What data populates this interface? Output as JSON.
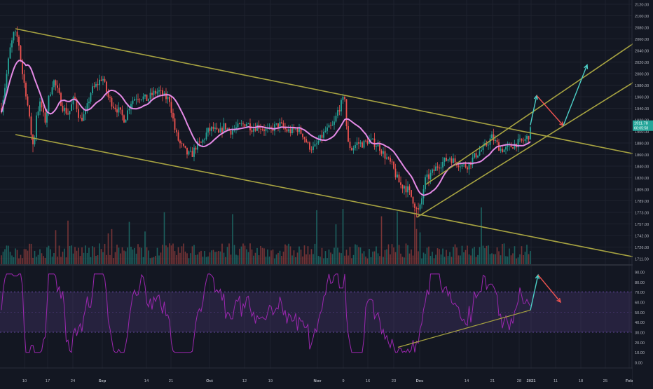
{
  "chart_data": [
    {
      "type": "candlestick",
      "panel": "price",
      "y_axis_ticks": [
        "2120.00",
        "2100.00",
        "2080.00",
        "2060.00",
        "2040.00",
        "2020.00",
        "2000.00",
        "1980.00",
        "1960.00",
        "1940.00",
        "1920.00",
        "1900.00",
        "1880.00",
        "1860.00",
        "1840.00",
        "1820.00",
        "1805.00",
        "1789.00",
        "1773.00",
        "1757.00",
        "1742.00",
        "1726.00",
        "1711.00"
      ],
      "price_badge": {
        "value": "1911.78",
        "subtext": "60:05:58",
        "color": "#26a69a"
      },
      "ylim": [
        1700,
        2125
      ],
      "x_axis_ticks": [
        "10",
        "17",
        "24",
        "Sep",
        "14",
        "21",
        "Oct",
        "12",
        "19",
        "Nov",
        "9",
        "16",
        "23",
        "Dec",
        "14",
        "21",
        "28",
        "2021",
        "11",
        "18",
        "25",
        "Feb"
      ],
      "candle_colors": {
        "up": "#26a69a",
        "down": "#ef5350"
      },
      "key_points": [
        {
          "label": "start",
          "close": 1940
        },
        {
          "label": "august-peak",
          "high": 2075
        },
        {
          "label": "august-low",
          "low": 1864
        },
        {
          "label": "late-sep-low",
          "low": 1848
        },
        {
          "label": "nov-spike",
          "high": 1965
        },
        {
          "label": "late-nov-low",
          "low": 1766
        },
        {
          "label": "latest",
          "close": 1911.78
        }
      ],
      "moving_average": {
        "color": "#e58ae6",
        "period_hint": "MA"
      },
      "trendlines": [
        {
          "name": "falling-channel-upper",
          "from": {
            "x": "Aug 6",
            "y": 2078
          },
          "to": {
            "x": "Feb 1",
            "y": 1866
          },
          "color": "#a7a341"
        },
        {
          "name": "falling-channel-lower",
          "from": {
            "x": "Aug 6",
            "y": 1900
          },
          "to": {
            "x": "Feb 1",
            "y": 1708
          },
          "color": "#a7a341"
        },
        {
          "name": "rising-channel-upper",
          "from": {
            "x": "Dec 3",
            "y": 1810
          },
          "to": {
            "x": "Feb 1",
            "y": 2065
          },
          "color": "#a7a341"
        },
        {
          "name": "rising-channel-lower",
          "from": {
            "x": "Nov 30",
            "y": 1773
          },
          "to": {
            "x": "Feb 1",
            "y": 2010
          },
          "color": "#a7a341"
        }
      ],
      "projection_arrows": [
        {
          "color": "#4dd0c8",
          "from": 1911,
          "to": 1962
        },
        {
          "color": "#ef5350",
          "from": 1962,
          "to": 1910
        },
        {
          "color": "#4dd0c8",
          "from": 1910,
          "to": 2015
        }
      ],
      "volume": {
        "up_color": "#26a69a",
        "down_color": "#ef5350"
      }
    },
    {
      "type": "line",
      "panel": "rsi",
      "y_axis_ticks": [
        "90.00",
        "80.00",
        "70.00",
        "60.00",
        "50.00",
        "40.00",
        "30.00",
        "20.00",
        "10.00",
        "0.00"
      ],
      "ylim": [
        -2,
        96
      ],
      "bands": {
        "upper": 70,
        "lower": 30,
        "fill": "#7e57c2"
      },
      "line_color": "#9c27b0",
      "key_points": [
        {
          "label": "august-high",
          "value": 86
        },
        {
          "label": "august-low",
          "value": 17
        },
        {
          "label": "nov-high",
          "value": 74
        },
        {
          "label": "late-nov-low",
          "value": 14
        },
        {
          "label": "latest",
          "value": 56
        }
      ],
      "trendline": {
        "from": 15,
        "to": 52,
        "color": "#a7a341"
      },
      "projection_arrows": [
        {
          "color": "#4dd0c8",
          "from": 52,
          "to": 87
        },
        {
          "color": "#ef5350",
          "from": 87,
          "to": 60
        }
      ]
    }
  ]
}
